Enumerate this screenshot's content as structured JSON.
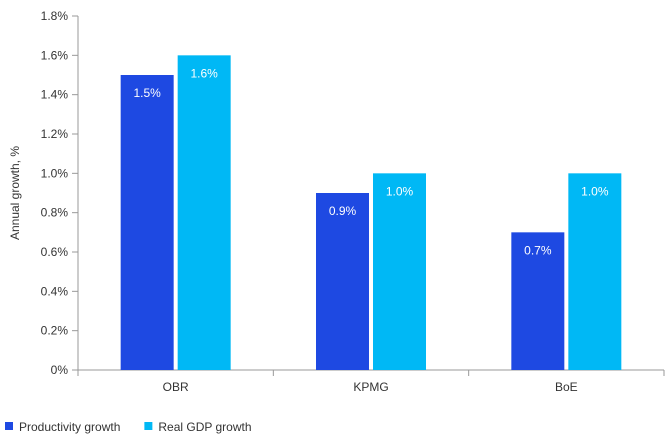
{
  "chart_data": {
    "type": "bar",
    "ylabel": "Annual growth, %",
    "ylim": [
      0,
      1.8
    ],
    "ytick_step": 0.2,
    "ytick_format": "percent-1dp",
    "grid": false,
    "legend_placement": "bottom-left",
    "categories": [
      "OBR",
      "KPMG",
      "BoE"
    ],
    "series": [
      {
        "name": "Productivity growth",
        "color": "#1E49E2",
        "values": [
          1.5,
          0.9,
          0.7
        ],
        "labels": [
          "1.5%",
          "0.9%",
          "0.7%"
        ]
      },
      {
        "name": "Real GDP growth",
        "color": "#00B8F5",
        "values": [
          1.6,
          1.0,
          1.0
        ],
        "labels": [
          "1.6%",
          "1.0%",
          "1.0%"
        ]
      }
    ]
  }
}
